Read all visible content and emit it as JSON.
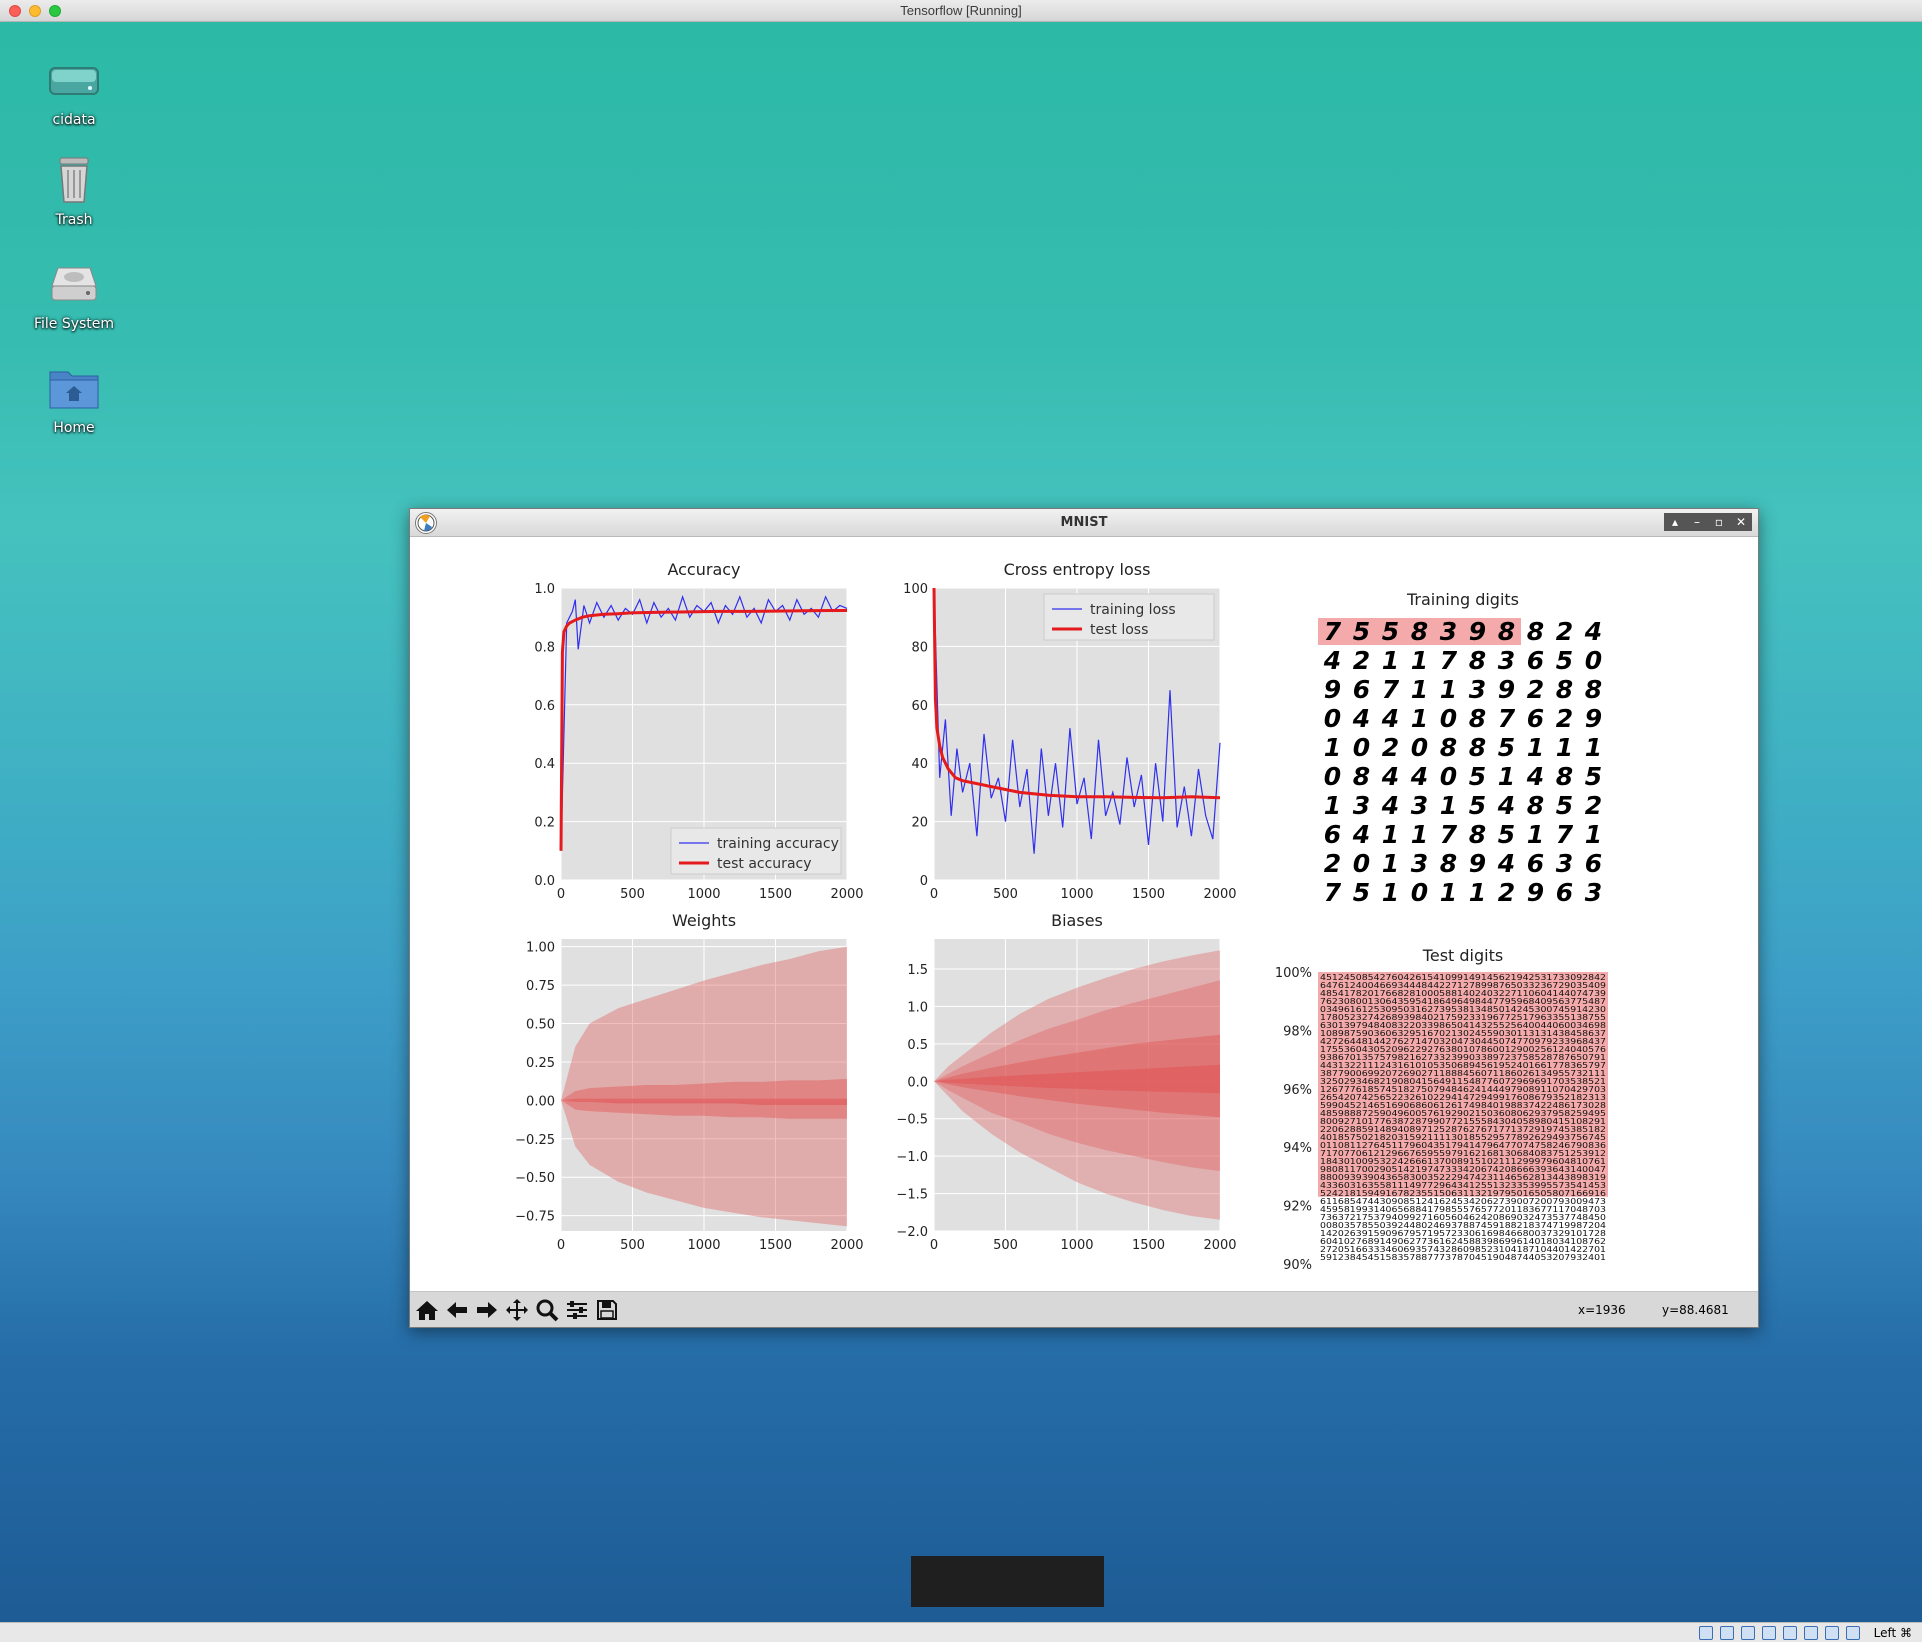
{
  "host": {
    "title": "Tensorflow [Running]"
  },
  "desktop": {
    "icons": [
      {
        "label": "cidata",
        "icon": "drive-icon"
      },
      {
        "label": "Trash",
        "icon": "trash-icon"
      },
      {
        "label": "File System",
        "icon": "harddisk-icon"
      },
      {
        "label": "Home",
        "icon": "home-folder-icon"
      }
    ]
  },
  "window": {
    "title": "MNIST",
    "coords": {
      "x": "x=1936",
      "y": "y=88.4681"
    },
    "toolbar": [
      "home-icon",
      "back-arrow-icon",
      "forward-arrow-icon",
      "pan-icon",
      "zoom-icon",
      "configure-subplots-icon",
      "save-icon"
    ]
  },
  "taskbar": {
    "right_text": "Left ⌘"
  },
  "colors": {
    "blue_series": "#3030ee",
    "red_series": "#e41a1c",
    "band": "#e8a3a3",
    "plot_bg": "#e0e0e0"
  },
  "chart_data": [
    {
      "type": "line",
      "title": "Accuracy",
      "xlim": [
        0,
        2000
      ],
      "ylim": [
        0.0,
        1.0
      ],
      "xticks": [
        "0",
        "500",
        "1000",
        "1500",
        "2000"
      ],
      "yticks": [
        "0.0",
        "0.2",
        "0.4",
        "0.6",
        "0.8",
        "1.0"
      ],
      "legend": "lower-right",
      "grid": true,
      "series": [
        {
          "name": "training accuracy",
          "x": [
            0,
            40,
            80,
            100,
            120,
            160,
            200,
            250,
            300,
            350,
            400,
            450,
            500,
            550,
            600,
            650,
            700,
            750,
            800,
            850,
            900,
            950,
            1000,
            1050,
            1100,
            1150,
            1200,
            1250,
            1300,
            1350,
            1400,
            1450,
            1500,
            1550,
            1600,
            1650,
            1700,
            1750,
            1800,
            1850,
            1900,
            1950,
            2000
          ],
          "values": [
            0.1,
            0.88,
            0.92,
            0.96,
            0.79,
            0.94,
            0.88,
            0.95,
            0.9,
            0.94,
            0.89,
            0.93,
            0.91,
            0.96,
            0.88,
            0.95,
            0.9,
            0.93,
            0.89,
            0.97,
            0.9,
            0.94,
            0.92,
            0.95,
            0.88,
            0.94,
            0.91,
            0.97,
            0.9,
            0.93,
            0.88,
            0.96,
            0.92,
            0.94,
            0.89,
            0.96,
            0.91,
            0.93,
            0.9,
            0.97,
            0.92,
            0.94,
            0.93
          ]
        },
        {
          "name": "test accuracy",
          "x": [
            0,
            10,
            20,
            40,
            60,
            100,
            150,
            200,
            300,
            400,
            500,
            700,
            900,
            1100,
            1300,
            1500,
            1700,
            1900,
            2000
          ],
          "values": [
            0.1,
            0.78,
            0.85,
            0.87,
            0.88,
            0.89,
            0.9,
            0.905,
            0.91,
            0.912,
            0.915,
            0.917,
            0.918,
            0.92,
            0.92,
            0.921,
            0.922,
            0.923,
            0.923
          ]
        }
      ]
    },
    {
      "type": "line",
      "title": "Cross entropy loss",
      "xlim": [
        0,
        2000
      ],
      "ylim": [
        0,
        100
      ],
      "xticks": [
        "0",
        "500",
        "1000",
        "1500",
        "2000"
      ],
      "yticks": [
        "0",
        "20",
        "40",
        "60",
        "80",
        "100"
      ],
      "legend": "top-right",
      "grid": true,
      "series": [
        {
          "name": "training loss",
          "x": [
            0,
            40,
            80,
            120,
            160,
            200,
            250,
            300,
            350,
            400,
            450,
            500,
            550,
            600,
            650,
            700,
            750,
            800,
            850,
            900,
            950,
            1000,
            1050,
            1100,
            1150,
            1200,
            1250,
            1300,
            1350,
            1400,
            1450,
            1500,
            1550,
            1600,
            1650,
            1700,
            1750,
            1800,
            1850,
            1900,
            1950,
            2000
          ],
          "values": [
            100,
            35,
            55,
            22,
            45,
            30,
            40,
            15,
            50,
            28,
            35,
            20,
            48,
            25,
            38,
            9,
            45,
            22,
            40,
            18,
            52,
            26,
            35,
            14,
            48,
            22,
            30,
            19,
            42,
            25,
            36,
            12,
            40,
            20,
            65,
            18,
            32,
            15,
            38,
            22,
            14,
            47
          ]
        },
        {
          "name": "test loss",
          "x": [
            0,
            10,
            20,
            40,
            60,
            100,
            150,
            200,
            300,
            400,
            500,
            600,
            800,
            1000,
            1200,
            1400,
            1600,
            1800,
            2000
          ],
          "values": [
            100,
            62,
            52,
            46,
            42,
            38,
            35,
            34,
            33,
            32,
            31,
            30,
            29,
            28.5,
            28.5,
            28.3,
            28.2,
            28.5,
            28.2
          ]
        }
      ]
    },
    {
      "type": "table",
      "title": "Training digits",
      "rows": [
        [
          "7",
          "5",
          "5",
          "8",
          "3",
          "9",
          "8",
          "8",
          "2",
          "4"
        ],
        [
          "4",
          "2",
          "1",
          "1",
          "7",
          "8",
          "3",
          "6",
          "5",
          "0"
        ],
        [
          "9",
          "6",
          "7",
          "1",
          "1",
          "3",
          "9",
          "2",
          "8",
          "8"
        ],
        [
          "0",
          "4",
          "4",
          "1",
          "0",
          "8",
          "7",
          "6",
          "2",
          "9"
        ],
        [
          "1",
          "0",
          "2",
          "0",
          "8",
          "8",
          "5",
          "1",
          "1",
          "1"
        ],
        [
          "0",
          "8",
          "4",
          "4",
          "0",
          "5",
          "1",
          "4",
          "8",
          "5"
        ],
        [
          "1",
          "3",
          "4",
          "3",
          "1",
          "5",
          "4",
          "8",
          "5",
          "2"
        ],
        [
          "6",
          "4",
          "1",
          "1",
          "7",
          "8",
          "5",
          "1",
          "7",
          "1"
        ],
        [
          "2",
          "0",
          "1",
          "3",
          "8",
          "9",
          "4",
          "6",
          "3",
          "6"
        ],
        [
          "7",
          "5",
          "1",
          "0",
          "1",
          "1",
          "2",
          "9",
          "6",
          "3"
        ]
      ]
    },
    {
      "type": "area",
      "title": "Weights",
      "xlim": [
        0,
        2000
      ],
      "ylim": [
        -0.85,
        1.05
      ],
      "xticks": [
        "0",
        "500",
        "1000",
        "1500",
        "2000"
      ],
      "yticks": [
        "1.00",
        "0.75",
        "0.50",
        "0.25",
        "0.00",
        "−0.25",
        "−0.50",
        "−0.75"
      ],
      "grid": true,
      "x": [
        0,
        100,
        200,
        400,
        600,
        800,
        1000,
        1200,
        1400,
        1600,
        1800,
        2000
      ],
      "bands": [
        {
          "upper": [
            0,
            0.35,
            0.5,
            0.6,
            0.66,
            0.72,
            0.78,
            0.83,
            0.88,
            0.92,
            0.97,
            1.0
          ],
          "lower": [
            0,
            -0.3,
            -0.42,
            -0.53,
            -0.6,
            -0.65,
            -0.7,
            -0.73,
            -0.76,
            -0.78,
            -0.8,
            -0.82
          ]
        },
        {
          "upper": [
            0,
            0.06,
            0.08,
            0.09,
            0.1,
            0.1,
            0.11,
            0.12,
            0.12,
            0.13,
            0.13,
            0.14
          ],
          "lower": [
            0,
            -0.06,
            -0.07,
            -0.08,
            -0.09,
            -0.1,
            -0.1,
            -0.11,
            -0.11,
            -0.12,
            -0.12,
            -0.12
          ]
        },
        {
          "upper": [
            0,
            0.01,
            0.01,
            0.01,
            0.01,
            0.01,
            0.01,
            0.01,
            0.01,
            0.01,
            0.01,
            0.01
          ],
          "lower": [
            0,
            -0.01,
            -0.01,
            -0.02,
            -0.02,
            -0.02,
            -0.02,
            -0.02,
            -0.03,
            -0.03,
            -0.03,
            -0.03
          ]
        }
      ]
    },
    {
      "type": "area",
      "title": "Biases",
      "xlim": [
        0,
        2000
      ],
      "ylim": [
        -2.0,
        1.9
      ],
      "xticks": [
        "0",
        "500",
        "1000",
        "1500",
        "2000"
      ],
      "yticks": [
        "1.5",
        "1.0",
        "0.5",
        "0.0",
        "−0.5",
        "−1.0",
        "−1.5",
        "−2.0"
      ],
      "grid": true,
      "x": [
        0,
        100,
        200,
        400,
        600,
        800,
        1000,
        1200,
        1400,
        1600,
        1800,
        2000
      ],
      "bands": [
        {
          "upper": [
            0,
            0.2,
            0.35,
            0.65,
            0.9,
            1.1,
            1.25,
            1.38,
            1.5,
            1.6,
            1.68,
            1.75
          ],
          "lower": [
            0,
            -0.2,
            -0.4,
            -0.7,
            -0.95,
            -1.15,
            -1.35,
            -1.5,
            -1.62,
            -1.72,
            -1.8,
            -1.85
          ]
        },
        {
          "upper": [
            0,
            0.1,
            0.2,
            0.38,
            0.55,
            0.7,
            0.82,
            0.95,
            1.05,
            1.15,
            1.25,
            1.35
          ],
          "lower": [
            0,
            -0.12,
            -0.22,
            -0.42,
            -0.55,
            -0.7,
            -0.82,
            -0.92,
            -1.0,
            -1.08,
            -1.15,
            -1.2
          ]
        },
        {
          "upper": [
            0,
            0.05,
            0.1,
            0.18,
            0.25,
            0.32,
            0.38,
            0.44,
            0.5,
            0.54,
            0.58,
            0.62
          ],
          "lower": [
            0,
            -0.04,
            -0.08,
            -0.14,
            -0.2,
            -0.25,
            -0.3,
            -0.34,
            -0.38,
            -0.42,
            -0.45,
            -0.48
          ]
        },
        {
          "upper": [
            0,
            0.02,
            0.03,
            0.06,
            0.08,
            0.1,
            0.12,
            0.14,
            0.16,
            0.18,
            0.2,
            0.22
          ],
          "lower": [
            0,
            -0.02,
            -0.03,
            -0.05,
            -0.07,
            -0.09,
            -0.1,
            -0.12,
            -0.13,
            -0.14,
            -0.15,
            -0.16
          ]
        }
      ]
    },
    {
      "type": "heatmap",
      "title": "Test digits",
      "ylim": [
        90,
        100
      ],
      "yticks": [
        "100%",
        "98%",
        "96%",
        "94%",
        "92%",
        "90%"
      ],
      "highlighted_fraction": 0.77
    }
  ]
}
